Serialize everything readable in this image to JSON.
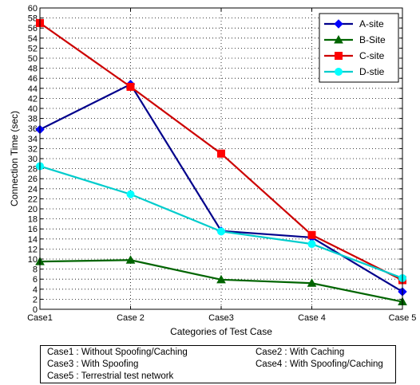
{
  "chart_data": {
    "type": "line",
    "categories": [
      "Case1",
      "Case 2",
      "Case3",
      "Case 4",
      "Case 5"
    ],
    "ylabel": "Connection Time (sec)",
    "xlabel": "Categories of Test Case",
    "ylim": [
      0,
      60
    ],
    "yticks": [
      0,
      2,
      4,
      6,
      8,
      10,
      12,
      14,
      16,
      18,
      20,
      22,
      24,
      26,
      28,
      30,
      32,
      34,
      36,
      38,
      40,
      42,
      44,
      46,
      48,
      50,
      52,
      54,
      56,
      58,
      60
    ],
    "grid": true,
    "legend_position": "top-right",
    "series": [
      {
        "name": "A-site",
        "color": "#00008b",
        "marker": "diamond",
        "marker_color": "#0000ff",
        "values": [
          35.8,
          44.8,
          15.6,
          14.3,
          3.5
        ]
      },
      {
        "name": "B-Site",
        "color": "#006400",
        "marker": "triangle",
        "marker_color": "#006400",
        "values": [
          9.5,
          9.8,
          5.9,
          5.2,
          1.5
        ]
      },
      {
        "name": "C-site",
        "color": "#cc0000",
        "marker": "square",
        "marker_color": "#ff0000",
        "values": [
          57.0,
          44.3,
          31.0,
          14.8,
          5.8
        ]
      },
      {
        "name": "D-stie",
        "color": "#00cccc",
        "marker": "circle",
        "marker_color": "#00ffff",
        "values": [
          28.5,
          22.9,
          15.5,
          13.0,
          6.2
        ]
      }
    ]
  },
  "case_legend": [
    "Case1 : Without Spoofing/Caching",
    "Case2 : With Caching",
    "Case3 : With Spoofing",
    "Case4 : With Spoofing/Caching",
    "Case5 : Terrestrial test network"
  ]
}
